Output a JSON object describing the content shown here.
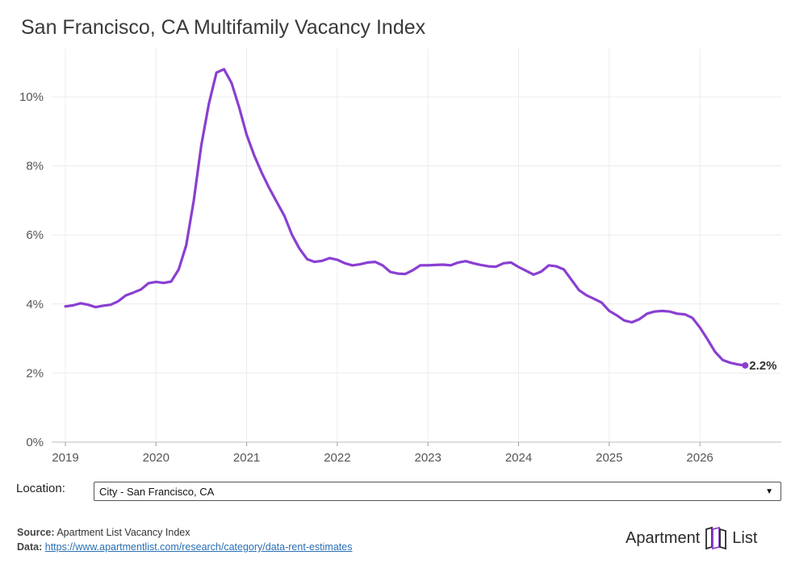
{
  "page_title": "San Francisco, CA Multifamily Vacancy Index",
  "chart_data": {
    "type": "line",
    "title": "San Francisco, CA Multifamily Vacancy Index",
    "xlabel": "",
    "ylabel": "",
    "x_ticks": [
      "2019",
      "2020",
      "2021",
      "2022",
      "2023",
      "2024",
      "2025",
      "2026"
    ],
    "y_ticks": [
      "0%",
      "2%",
      "4%",
      "6%",
      "8%",
      "10%"
    ],
    "xlim": [
      "2019-01",
      "2026-11"
    ],
    "ylim": [
      0,
      11
    ],
    "grid": true,
    "line_color": "#8a3fd1",
    "end_label": "2.2%",
    "series": [
      {
        "x": [
          "2019-01",
          "2019-02",
          "2019-03",
          "2019-04",
          "2019-05",
          "2019-06",
          "2019-07",
          "2019-08",
          "2019-09",
          "2019-10",
          "2019-11",
          "2019-12",
          "2020-01",
          "2020-02",
          "2020-03",
          "2020-04",
          "2020-05",
          "2020-06",
          "2020-07",
          "2020-08",
          "2020-09",
          "2020-10",
          "2020-11",
          "2020-12",
          "2021-01",
          "2021-02",
          "2021-03",
          "2021-04",
          "2021-05",
          "2021-06",
          "2021-07",
          "2021-08",
          "2021-09",
          "2021-10",
          "2021-11",
          "2021-12",
          "2022-01",
          "2022-02",
          "2022-03",
          "2022-04",
          "2022-05",
          "2022-06",
          "2022-07",
          "2022-08",
          "2022-09",
          "2022-10",
          "2022-11",
          "2022-12",
          "2023-01",
          "2023-02",
          "2023-03",
          "2023-04",
          "2023-05",
          "2023-06",
          "2023-07",
          "2023-08",
          "2023-09",
          "2023-10",
          "2023-11",
          "2023-12",
          "2024-01",
          "2024-02",
          "2024-03",
          "2024-04",
          "2024-05",
          "2024-06",
          "2024-07",
          "2024-08",
          "2024-09",
          "2024-10",
          "2024-11",
          "2024-12",
          "2025-01",
          "2025-02",
          "2025-03",
          "2025-04",
          "2025-05",
          "2025-06",
          "2025-07",
          "2025-08",
          "2025-09",
          "2025-10",
          "2025-11",
          "2025-12",
          "2026-01",
          "2026-02",
          "2026-03",
          "2026-04",
          "2026-05",
          "2026-06",
          "2026-07"
        ],
        "values": [
          3.93,
          3.96,
          4.02,
          3.98,
          3.91,
          3.95,
          3.98,
          4.08,
          4.25,
          4.33,
          4.42,
          4.6,
          4.64,
          4.61,
          4.65,
          5.0,
          5.7,
          7.0,
          8.6,
          9.8,
          10.7,
          10.8,
          10.4,
          9.7,
          8.9,
          8.3,
          7.8,
          7.35,
          6.95,
          6.55,
          6.0,
          5.6,
          5.3,
          5.22,
          5.25,
          5.33,
          5.28,
          5.18,
          5.12,
          5.15,
          5.2,
          5.22,
          5.12,
          4.93,
          4.88,
          4.87,
          4.98,
          5.12,
          5.12,
          5.13,
          5.14,
          5.12,
          5.2,
          5.24,
          5.18,
          5.13,
          5.09,
          5.08,
          5.18,
          5.2,
          5.07,
          4.96,
          4.85,
          4.94,
          5.12,
          5.09,
          5.0,
          4.7,
          4.4,
          4.25,
          4.15,
          4.04,
          3.8,
          3.67,
          3.52,
          3.47,
          3.56,
          3.72,
          3.78,
          3.8,
          3.78,
          3.72,
          3.7,
          3.6,
          3.32,
          2.98,
          2.62,
          2.38,
          2.3,
          2.25,
          2.22
        ]
      }
    ]
  },
  "location": {
    "label": "Location:",
    "selected": "City - San Francisco, CA"
  },
  "footer": {
    "source_label": "Source:",
    "source_text": "Apartment List Vacancy Index",
    "data_label": "Data:",
    "data_link": "https://www.apartmentlist.com/research/category/data-rent-estimates"
  },
  "brand": {
    "name_left": "Apartment",
    "name_right": "List"
  }
}
